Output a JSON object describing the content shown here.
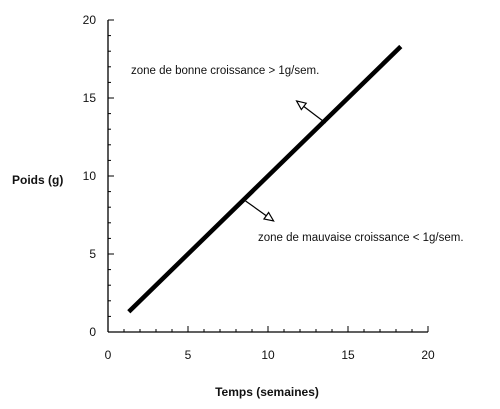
{
  "chart_data": {
    "type": "line",
    "xlabel": "Temps (semaines)",
    "ylabel": "Poids (g)",
    "xlim": [
      0,
      20
    ],
    "ylim": [
      0,
      20
    ],
    "xticks": [
      "0",
      "5",
      "10",
      "15",
      "20"
    ],
    "yticks": [
      "0",
      "5",
      "10",
      "15",
      "20"
    ],
    "grid": false,
    "series": [
      {
        "x": [
          1.3,
          18.3
        ],
        "y": [
          1.3,
          18.3
        ]
      }
    ],
    "annotations": [
      {
        "text": "zone de bonne croissance > 1g/sem.",
        "direction": "up-left"
      },
      {
        "text": "zone de mauvaise croissance < 1g/sem.",
        "direction": "down-right"
      }
    ],
    "colors": {
      "line": "#000000",
      "axis": "#000000"
    }
  }
}
